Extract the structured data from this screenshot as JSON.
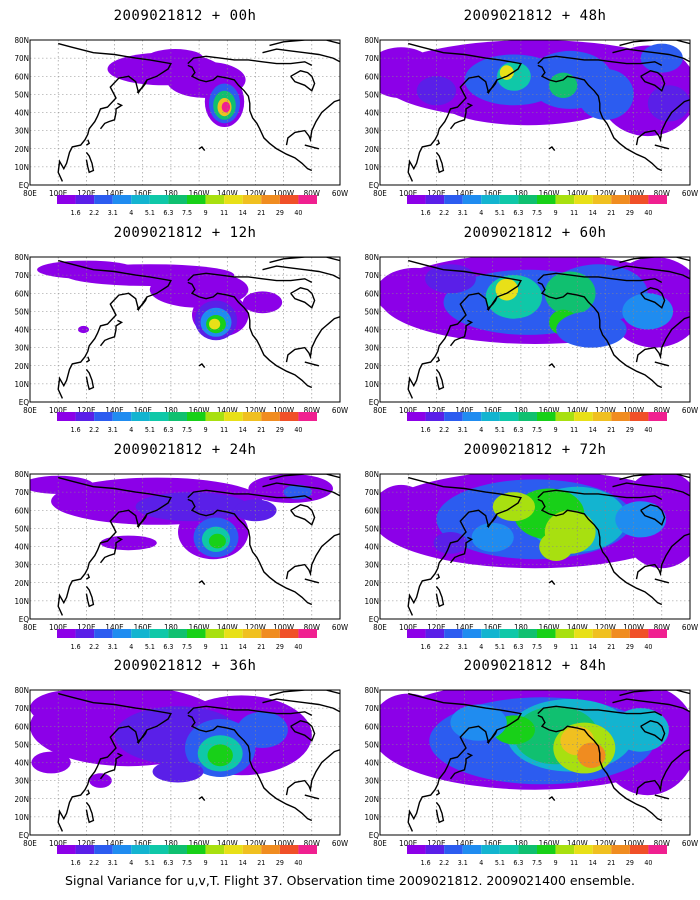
{
  "caption": "Signal Variance for u,v,T. Flight 37. Observation time 2009021812. 2009021400 ensemble.",
  "colors": {
    "levels": [
      "#8c00e8",
      "#5a1fe8",
      "#2c5cf0",
      "#1f8cf0",
      "#13b4d0",
      "#0fc8a8",
      "#10c070",
      "#18d018",
      "#a8e010",
      "#e8e018",
      "#f0c020",
      "#f08c20",
      "#f05028",
      "#f02090"
    ],
    "land_outline": "#000000",
    "grid": "#888888"
  },
  "chart_data": {
    "type": "heatmap",
    "title_base": "2009021812",
    "x_ticks": [
      "80E",
      "100E",
      "120E",
      "140E",
      "160E",
      "180",
      "160W",
      "140W",
      "120W",
      "100W",
      "80W",
      "60W"
    ],
    "y_ticks": [
      "80N",
      "70N",
      "60N",
      "50N",
      "40N",
      "30N",
      "20N",
      "10N",
      "EQ"
    ],
    "colorbar_labels": [
      "1.6",
      "2.2",
      "3.1",
      "4",
      "5.1",
      "6.3",
      "7.5",
      "9",
      "11",
      "14",
      "21",
      "29",
      "40"
    ],
    "lon_range": [
      "80E",
      "60W"
    ],
    "lat_range": [
      "EQ",
      "80N"
    ],
    "grid": true,
    "panels": [
      {
        "title": "2009021812 + 00h",
        "lead_hours": 0
      },
      {
        "title": "2009021812 + 12h",
        "lead_hours": 12
      },
      {
        "title": "2009021812 + 24h",
        "lead_hours": 24
      },
      {
        "title": "2009021812 + 36h",
        "lead_hours": 36
      },
      {
        "title": "2009021812 + 48h",
        "lead_hours": 48
      },
      {
        "title": "2009021812 + 60h",
        "lead_hours": 60
      },
      {
        "title": "2009021812 + 72h",
        "lead_hours": 72
      },
      {
        "title": "2009021812 + 84h",
        "lead_hours": 84
      }
    ]
  }
}
